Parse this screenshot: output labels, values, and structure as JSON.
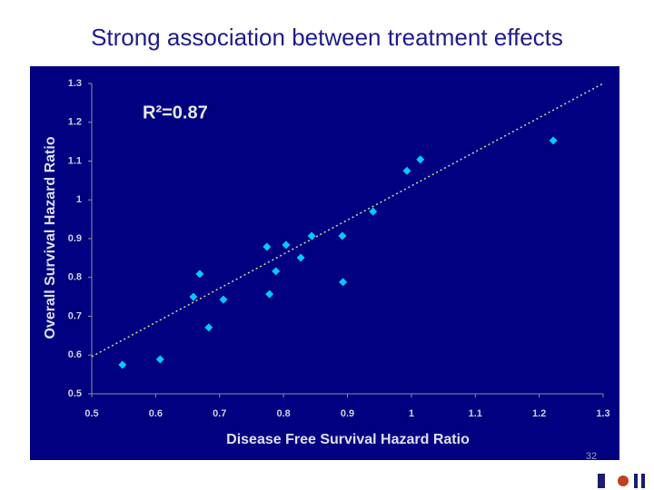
{
  "slide_title": "Strong association between treatment effects",
  "page_number": "32",
  "chart_data": {
    "type": "scatter",
    "xlabel": "Disease Free Survival Hazard Ratio",
    "ylabel": "Overall Survival Hazard Ratio",
    "annotation": "R²=0.87",
    "color": "#00ccff",
    "x": [
      0.548,
      0.607,
      0.659,
      0.669,
      0.683,
      0.706,
      0.774,
      0.778,
      0.788,
      0.804,
      0.827,
      0.844,
      0.892,
      0.893,
      0.94,
      0.993,
      1.014,
      1.222
    ],
    "y": [
      0.575,
      0.589,
      0.75,
      0.809,
      0.671,
      0.743,
      0.879,
      0.757,
      0.816,
      0.884,
      0.851,
      0.907,
      0.907,
      0.788,
      0.97,
      1.075,
      1.104,
      1.153
    ],
    "trendline": {
      "x": [
        0.5,
        1.3
      ],
      "y": [
        0.596,
        1.3
      ],
      "color": "#d8d8a0"
    },
    "xlim": [
      0.5,
      1.3
    ],
    "ylim": [
      0.5,
      1.3
    ],
    "xticks": [
      0.5,
      0.6,
      0.7,
      0.8,
      0.9,
      1,
      1.1,
      1.2,
      1.3
    ],
    "yticks": [
      0.5,
      0.6,
      0.7,
      0.8,
      0.9,
      1,
      1.1,
      1.2,
      1.3
    ]
  }
}
